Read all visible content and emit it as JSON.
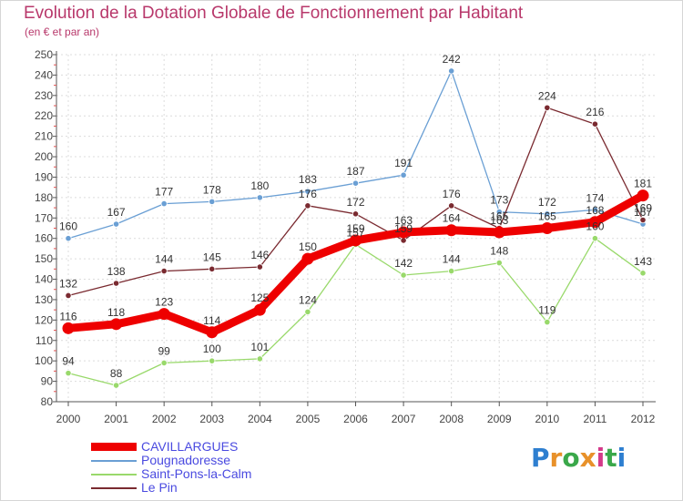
{
  "title": "Evolution de la Dotation Globale de Fonctionnement par Habitant",
  "subtitle": "(en € et par an)",
  "brand": {
    "letters": [
      "P",
      "r",
      "o",
      "x",
      "i",
      "t",
      "i"
    ],
    "colors": [
      "#2e7fd0",
      "#e8912a",
      "#3aa84a",
      "#e8912a",
      "#d43a8a",
      "#3aa84a",
      "#2e7fd0"
    ]
  },
  "chart_data": {
    "type": "line",
    "title": "Evolution de la Dotation Globale de Fonctionnement par Habitant",
    "ylabel": "(en € et par an)",
    "xlabel": "",
    "x": [
      "2000",
      "2001",
      "2002",
      "2003",
      "2004",
      "2005",
      "2006",
      "2007",
      "2008",
      "2009",
      "2010",
      "2011",
      "2012"
    ],
    "ylim": [
      80,
      250
    ],
    "yticks": [
      "80",
      "90",
      "100",
      "110",
      "120",
      "130",
      "140",
      "150",
      "160",
      "170",
      "180",
      "190",
      "200",
      "210",
      "220",
      "230",
      "240",
      "250"
    ],
    "grid": true,
    "legend": "bottom-left",
    "series": [
      {
        "name": "Pougnadoresse",
        "color": "#6a9fd4",
        "values": [
          160,
          167,
          177,
          178,
          180,
          183,
          187,
          191,
          242,
          173,
          172,
          174,
          167
        ],
        "labels": [
          "160",
          "167",
          "177",
          "178",
          "180",
          "183",
          "187",
          "191",
          "242",
          "173",
          "172",
          "174",
          "167"
        ]
      },
      {
        "name": "Saint-Pons-la-Calm",
        "color": "#99d96b",
        "values": [
          94,
          88,
          99,
          100,
          101,
          124,
          157,
          142,
          144,
          148,
          119,
          160,
          143
        ],
        "labels": [
          "94",
          "88",
          "99",
          "100",
          "101",
          "124",
          "157",
          "142",
          "144",
          "148",
          "119",
          "160",
          "143"
        ]
      },
      {
        "name": "Le Pin",
        "color": "#7a2a30",
        "values": [
          132,
          138,
          144,
          145,
          146,
          176,
          172,
          159,
          176,
          165,
          224,
          216,
          169
        ],
        "labels": [
          "132",
          "138",
          "144",
          "145",
          "146",
          "176",
          "172",
          "159",
          "176",
          "165",
          "224",
          "216",
          "169"
        ]
      },
      {
        "name": "CAVILLARGUES",
        "color": "#ee0000",
        "values": [
          116,
          118,
          123,
          114,
          125,
          150,
          159,
          163,
          164,
          163,
          165,
          168,
          181
        ],
        "labels": [
          "116",
          "118",
          "123",
          "114",
          "125",
          "150",
          "159",
          "163",
          "164",
          "163",
          "165",
          "168",
          "181"
        ]
      }
    ]
  },
  "legend_order": [
    "CAVILLARGUES",
    "Pougnadoresse",
    "Saint-Pons-la-Calm",
    "Le Pin"
  ]
}
